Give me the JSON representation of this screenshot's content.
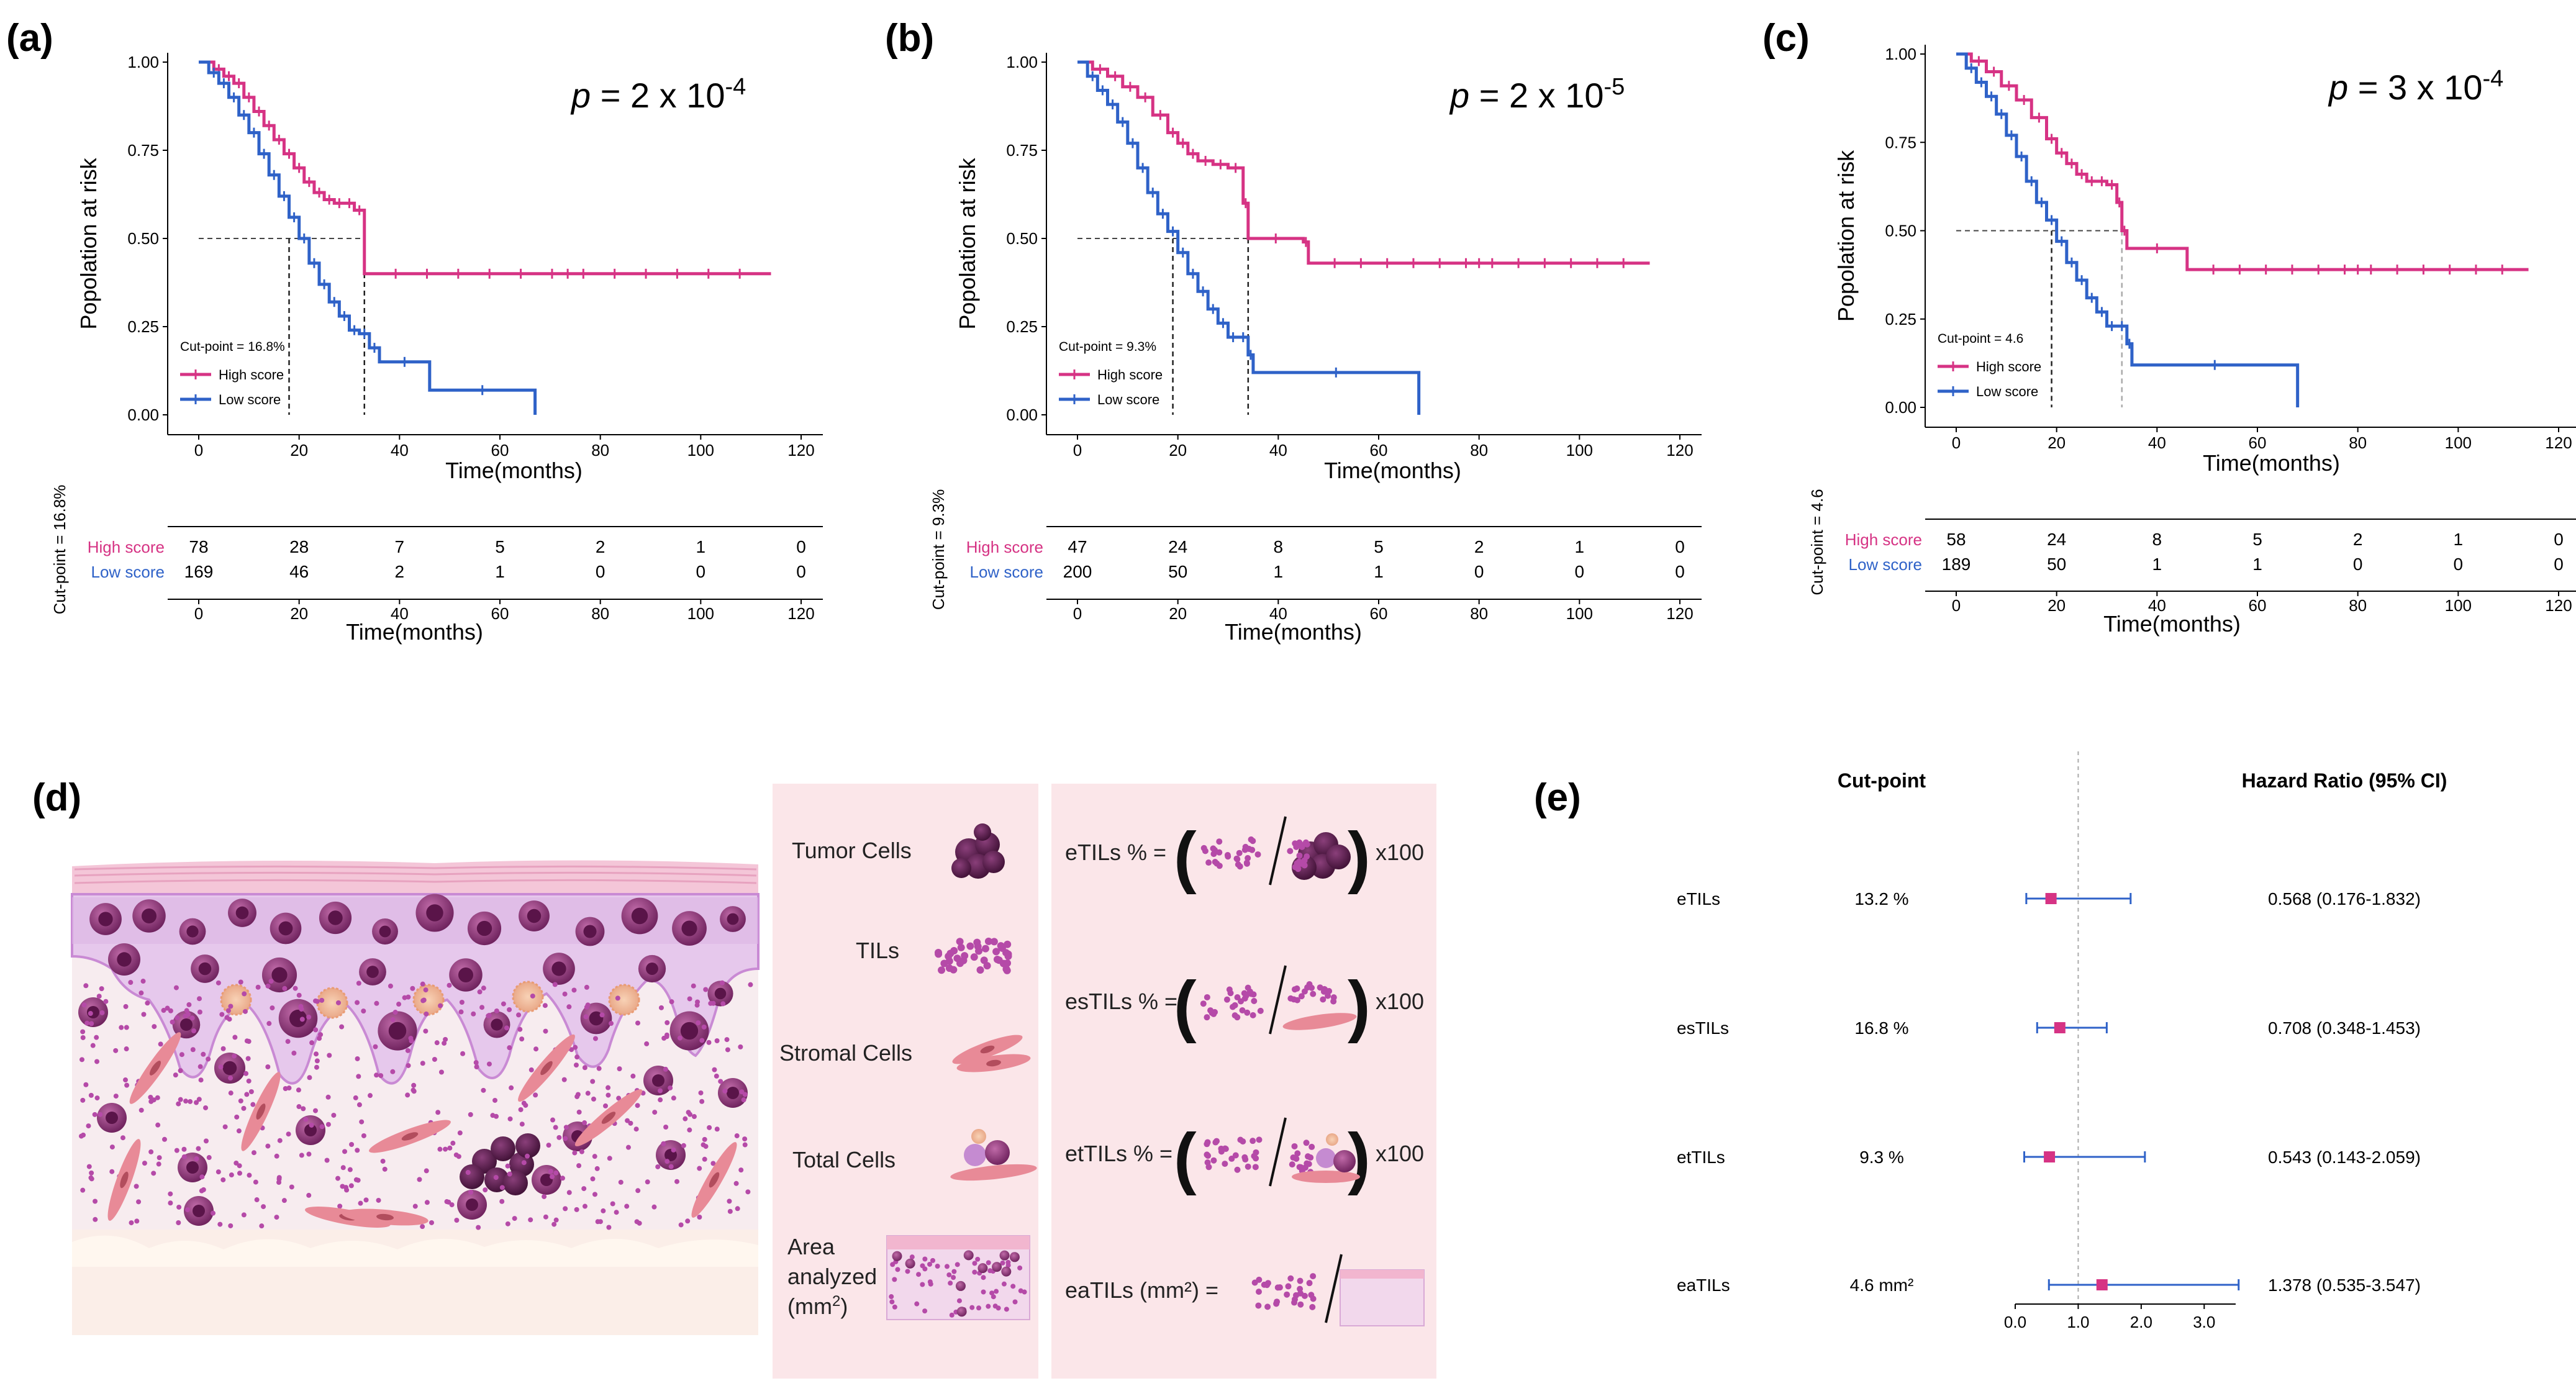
{
  "colors": {
    "high": "#d63384",
    "low": "#2f62c8",
    "panel_bg": "#fbe8ea",
    "skin": "#f6e8ee"
  },
  "panels": {
    "a": {
      "letter": "(a)"
    },
    "b": {
      "letter": "(b)"
    },
    "c": {
      "letter": "(c)"
    },
    "d": {
      "letter": "(d)"
    },
    "e": {
      "letter": "(e)"
    }
  },
  "chart_data": [
    {
      "panel": "a",
      "type": "line",
      "title": "",
      "p_value": {
        "prefix": "p",
        "mid": " = 2 x 10",
        "exp": "-4"
      },
      "ylabel": "Popolation at risk",
      "xlabel": "Time(months)",
      "ylim": [
        0,
        1
      ],
      "xlim": [
        0,
        120
      ],
      "yticks": [
        "0.00",
        "0.25",
        "0.50",
        "0.75",
        "1.00"
      ],
      "xticks": [
        "0",
        "20",
        "40",
        "60",
        "80",
        "100",
        "120"
      ],
      "cutpoint_label": "Cut-point = 16.8%",
      "risk_cutpoint_label": "Cut-point = 16.8%",
      "legend": [
        "High score",
        "Low score"
      ],
      "median_low": 18,
      "median_high": 33,
      "series": [
        {
          "name": "High score",
          "x": [
            0,
            3,
            5,
            7,
            9,
            11,
            13,
            15,
            17,
            19,
            21,
            23,
            25,
            27,
            29,
            31,
            33,
            33,
            114
          ],
          "y": [
            1,
            0.98,
            0.96,
            0.94,
            0.9,
            0.86,
            0.82,
            0.78,
            0.74,
            0.7,
            0.66,
            0.63,
            0.61,
            0.6,
            0.6,
            0.58,
            0.5,
            0.4,
            0.4
          ]
        },
        {
          "name": "Low score",
          "x": [
            0,
            2,
            4,
            6,
            8,
            10,
            12,
            14,
            16,
            18,
            20,
            22,
            24,
            26,
            28,
            30,
            32,
            34,
            36,
            46,
            67,
            67
          ],
          "y": [
            1,
            0.97,
            0.94,
            0.9,
            0.85,
            0.8,
            0.74,
            0.68,
            0.62,
            0.56,
            0.5,
            0.43,
            0.37,
            0.32,
            0.28,
            0.24,
            0.23,
            0.19,
            0.15,
            0.07,
            0.07,
            0.0
          ]
        }
      ],
      "risk_table": {
        "rows": [
          {
            "label": "High score",
            "values": [
              "78",
              "28",
              "7",
              "5",
              "2",
              "1",
              "0"
            ]
          },
          {
            "label": "Low score",
            "values": [
              "169",
              "46",
              "2",
              "1",
              "0",
              "0",
              "0"
            ]
          }
        ],
        "xticks": [
          "0",
          "20",
          "40",
          "60",
          "80",
          "100",
          "120"
        ],
        "xlabel": "Time(months)"
      }
    },
    {
      "panel": "b",
      "type": "line",
      "title": "",
      "p_value": {
        "prefix": "p",
        "mid": " = 2 x 10",
        "exp": "-5"
      },
      "ylabel": "Popolation at risk",
      "xlabel": "Time(months)",
      "ylim": [
        0,
        1
      ],
      "xlim": [
        0,
        120
      ],
      "yticks": [
        "0.00",
        "0.25",
        "0.50",
        "0.75",
        "1.00"
      ],
      "xticks": [
        "0",
        "20",
        "40",
        "60",
        "80",
        "100",
        "120"
      ],
      "cutpoint_label": "Cut-point = 9.3%",
      "risk_cutpoint_label": "Cut-point = 9.3%",
      "legend": [
        "High score",
        "Low score"
      ],
      "median_low": 19,
      "median_high": 34,
      "series": [
        {
          "name": "High score",
          "x": [
            0,
            3,
            6,
            9,
            12,
            15,
            18,
            20,
            22,
            24,
            27,
            30,
            33,
            34,
            45,
            46,
            114
          ],
          "y": [
            1,
            0.98,
            0.96,
            0.93,
            0.9,
            0.85,
            0.8,
            0.77,
            0.74,
            0.72,
            0.71,
            0.7,
            0.6,
            0.5,
            0.49,
            0.43,
            0.43
          ]
        },
        {
          "name": "Low score",
          "x": [
            0,
            2,
            4,
            6,
            8,
            10,
            12,
            14,
            16,
            18,
            20,
            22,
            24,
            26,
            28,
            30,
            32,
            34,
            35,
            68,
            68
          ],
          "y": [
            1,
            0.96,
            0.92,
            0.88,
            0.83,
            0.77,
            0.7,
            0.63,
            0.57,
            0.52,
            0.46,
            0.4,
            0.35,
            0.3,
            0.26,
            0.22,
            0.22,
            0.17,
            0.12,
            0.12,
            0.0
          ]
        }
      ],
      "risk_table": {
        "rows": [
          {
            "label": "High score",
            "values": [
              "47",
              "24",
              "8",
              "5",
              "2",
              "1",
              "0"
            ]
          },
          {
            "label": "Low score",
            "values": [
              "200",
              "50",
              "1",
              "1",
              "0",
              "0",
              "0"
            ]
          }
        ],
        "xticks": [
          "0",
          "20",
          "40",
          "60",
          "80",
          "100",
          "120"
        ],
        "xlabel": "Time(months)"
      }
    },
    {
      "panel": "c",
      "type": "line",
      "title": "",
      "p_value": {
        "prefix": "p",
        "mid": " = 3 x 10",
        "exp": "-4"
      },
      "ylabel": "Popolation at risk",
      "xlabel": "Time(months)",
      "ylim": [
        0,
        1
      ],
      "xlim": [
        0,
        120
      ],
      "yticks": [
        "0.00",
        "0.25",
        "0.50",
        "0.75",
        "1.00"
      ],
      "xticks": [
        "0",
        "20",
        "40",
        "60",
        "80",
        "100",
        "120"
      ],
      "cutpoint_label": "Cut-point = 4.6",
      "risk_cutpoint_label": "Cut-point = 4.6",
      "legend": [
        "High score",
        "Low score"
      ],
      "median_low": 19,
      "median_high": 33,
      "series": [
        {
          "name": "High score",
          "x": [
            0,
            3,
            6,
            9,
            12,
            15,
            18,
            20,
            22,
            24,
            26,
            28,
            30,
            32,
            33,
            34,
            46,
            46,
            114
          ],
          "y": [
            1,
            0.98,
            0.95,
            0.91,
            0.87,
            0.82,
            0.76,
            0.72,
            0.69,
            0.66,
            0.64,
            0.64,
            0.63,
            0.58,
            0.5,
            0.45,
            0.45,
            0.39,
            0.39
          ]
        },
        {
          "name": "Low score",
          "x": [
            0,
            2,
            4,
            6,
            8,
            10,
            12,
            14,
            16,
            18,
            20,
            22,
            24,
            26,
            28,
            30,
            32,
            34,
            35,
            68,
            68
          ],
          "y": [
            1,
            0.96,
            0.92,
            0.88,
            0.83,
            0.77,
            0.71,
            0.64,
            0.58,
            0.53,
            0.47,
            0.41,
            0.36,
            0.31,
            0.27,
            0.23,
            0.23,
            0.18,
            0.12,
            0.12,
            0.0
          ]
        }
      ],
      "risk_table": {
        "rows": [
          {
            "label": "High score",
            "values": [
              "58",
              "24",
              "8",
              "5",
              "2",
              "1",
              "0"
            ]
          },
          {
            "label": "Low score",
            "values": [
              "189",
              "50",
              "1",
              "1",
              "0",
              "0",
              "0"
            ]
          }
        ],
        "xticks": [
          "0",
          "20",
          "40",
          "60",
          "80",
          "100",
          "120"
        ],
        "xlabel": "Time(months)"
      }
    },
    {
      "panel": "e",
      "type": "scatter",
      "title": "",
      "col_headers": {
        "cutpoint": "Cut-point",
        "hr": "Hazard Ratio (95% CI)"
      },
      "rows": [
        {
          "name": "eTILs",
          "cutpoint": "13.2 %",
          "hr": 0.568,
          "lo": 0.176,
          "hi": 1.832,
          "hr_text": "0.568 (0.176-1.832)"
        },
        {
          "name": "esTILs",
          "cutpoint": "16.8 %",
          "hr": 0.708,
          "lo": 0.348,
          "hi": 1.453,
          "hr_text": "0.708 (0.348-1.453)"
        },
        {
          "name": "etTILs",
          "cutpoint": "9.3 %",
          "hr": 0.543,
          "lo": 0.143,
          "hi": 2.059,
          "hr_text": "0.543 (0.143-2.059)"
        },
        {
          "name": "eaTILs",
          "cutpoint": "4.6 mm²",
          "hr": 1.378,
          "lo": 0.535,
          "hi": 3.547,
          "hr_text": "1.378 (0.535-3.547)"
        }
      ],
      "xlim": [
        0,
        3.5
      ],
      "xticks": [
        "0.0",
        "1.0",
        "2.0",
        "3.0"
      ],
      "reference_line": 1.0
    }
  ],
  "diagram": {
    "legend_items": [
      {
        "label": "Tumor Cells"
      },
      {
        "label": "TILs"
      },
      {
        "label": "Stromal Cells"
      },
      {
        "label": "Total Cells"
      },
      {
        "label_lines": [
          "Area",
          "analyzed",
          "(mm2)"
        ]
      }
    ],
    "formulas": [
      {
        "lhs": "eTILs % =",
        "suffix": "x100"
      },
      {
        "lhs": "esTILs % =",
        "suffix": "x100"
      },
      {
        "lhs": "etTILs % =",
        "suffix": "x100"
      },
      {
        "lhs": "eaTILs  (mm²) =",
        "suffix": ""
      }
    ],
    "area_unit_sup": "2"
  }
}
